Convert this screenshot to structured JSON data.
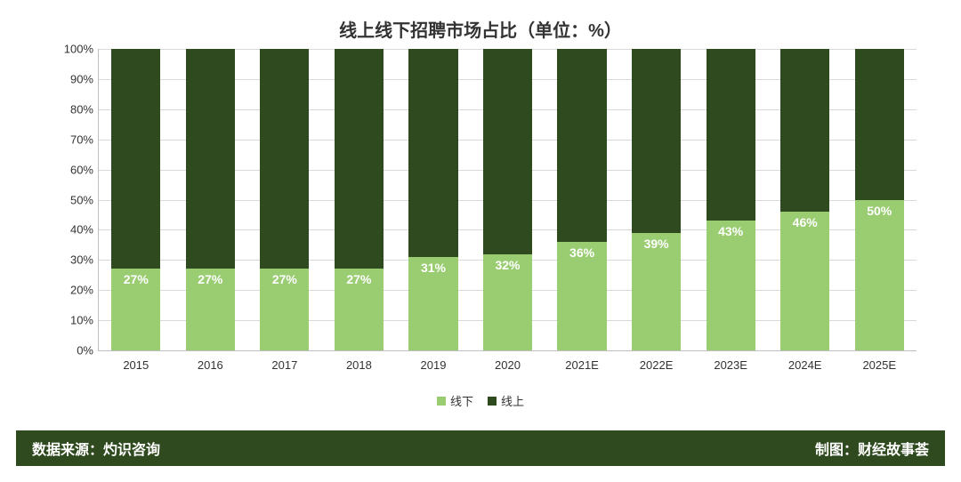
{
  "title": {
    "text": "线上线下招聘市场占比（单位：%）",
    "fontsize": 20,
    "color": "#333333"
  },
  "chart": {
    "type": "stacked-bar",
    "background_color": "#ffffff",
    "grid_color": "#d9d9d9",
    "axis_color": "#bfbfbf",
    "ylim": [
      0,
      100
    ],
    "ytick_step": 10,
    "y_suffix": "%",
    "categories": [
      "2015",
      "2016",
      "2017",
      "2018",
      "2019",
      "2020",
      "2021E",
      "2022E",
      "2023E",
      "2024E",
      "2025E"
    ],
    "series": {
      "lower": {
        "name": "线下",
        "color": "#9acd72",
        "values": [
          27,
          27,
          27,
          27,
          31,
          32,
          36,
          39,
          43,
          46,
          50
        ]
      },
      "upper": {
        "name": "线上",
        "color": "#2f4a1e",
        "values": [
          73,
          73,
          73,
          73,
          69,
          68,
          64,
          61,
          57,
          54,
          50
        ]
      }
    },
    "bar_label_color": "#ffffff",
    "bar_label_fontsize": 14,
    "x_label_fontsize": 13,
    "y_label_fontsize": 13,
    "bar_width_ratio": 0.66
  },
  "legend": {
    "items": [
      {
        "label": "线下",
        "color": "#9acd72"
      },
      {
        "label": "线上",
        "color": "#2f4a1e"
      }
    ],
    "fontsize": 13
  },
  "footer": {
    "background_color": "#2f4a1e",
    "text_color": "#ffffff",
    "left_text": "数据来源：灼识咨询",
    "right_text": "制图：财经故事荟",
    "fontsize": 16
  }
}
